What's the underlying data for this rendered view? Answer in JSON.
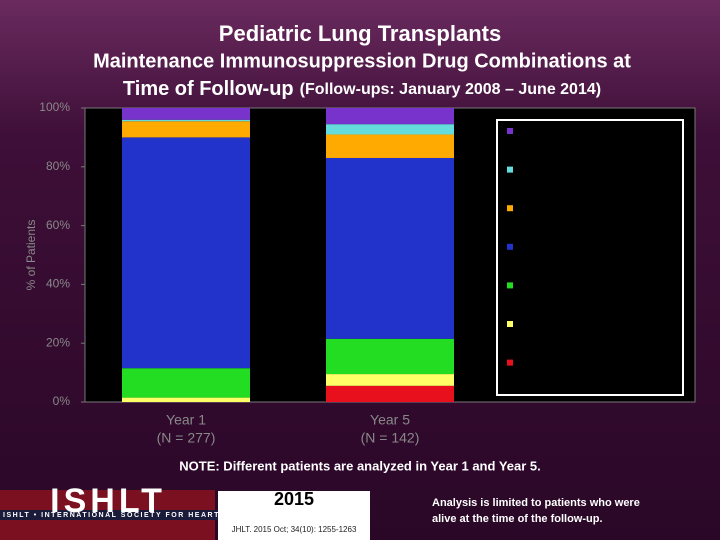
{
  "chart_data": {
    "type": "stacked_bar",
    "title": "Pediatric Lung Transplants",
    "subtitle_line1": "Maintenance Immunosuppression Drug Combinations at",
    "subtitle_line2": "Time of Follow-up",
    "subtitle_period": "(Follow-ups: January 2008 – June 2014)",
    "y_label": "% of Patients",
    "categories": [
      "Year 1",
      "Year 5"
    ],
    "category_notes": [
      "(N = 277)",
      "(N = 142)"
    ],
    "series": [
      {
        "color": "#e8101c",
        "values": [
          0,
          5.5
        ]
      },
      {
        "color": "#ffff66",
        "values": [
          1.5,
          4
        ]
      },
      {
        "color": "#22dd22",
        "values": [
          10,
          12
        ]
      },
      {
        "color": "#2233cc",
        "values": [
          78.5,
          61.5
        ]
      },
      {
        "color": "#ffaa00",
        "values": [
          5.5,
          8
        ]
      },
      {
        "color": "#66dddd",
        "values": [
          0.5,
          3.5
        ]
      },
      {
        "color": "#7733cc",
        "values": [
          4,
          5.5
        ]
      }
    ],
    "ylim": [
      0,
      100
    ],
    "yticks": [
      {
        "value": 0,
        "label": "0%"
      },
      {
        "value": 20,
        "label": "20%"
      },
      {
        "value": 40,
        "label": "40%"
      },
      {
        "value": 60,
        "label": "60%"
      },
      {
        "value": 80,
        "label": "80%"
      },
      {
        "value": 100,
        "label": "100%"
      }
    ],
    "grid": false,
    "legend": "right",
    "note": "NOTE: Different patients are analyzed in Year 1 and Year 5."
  },
  "footer": {
    "logo": "ISHLT",
    "society": "ISHLT • INTERNATIONAL SOCIETY FOR HEART AND LUNG TRANSPLANTATION",
    "year": "2015",
    "citation": "JHLT. 2015 Oct; 34(10): 1255-1263",
    "analysis_line1": "Analysis is limited to patients who were",
    "analysis_line2": "alive at the time of the follow-up."
  }
}
